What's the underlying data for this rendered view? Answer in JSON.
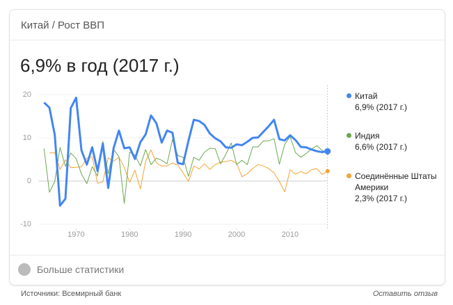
{
  "header": {
    "title": "Китай / Рост ВВП",
    "headline": "6,9% в год (2017 г.)"
  },
  "chart_data": {
    "type": "line",
    "x": [
      1964,
      1965,
      1966,
      1967,
      1968,
      1969,
      1970,
      1971,
      1972,
      1973,
      1974,
      1975,
      1976,
      1977,
      1978,
      1979,
      1980,
      1981,
      1982,
      1983,
      1984,
      1985,
      1986,
      1987,
      1988,
      1989,
      1990,
      1991,
      1992,
      1993,
      1994,
      1995,
      1996,
      1997,
      1998,
      1999,
      2000,
      2001,
      2002,
      2003,
      2004,
      2005,
      2006,
      2007,
      2008,
      2009,
      2010,
      2011,
      2012,
      2013,
      2014,
      2015,
      2016,
      2017
    ],
    "series": [
      {
        "name": "Китай",
        "note": "6,9% (2017 г.)",
        "color": "#4285f4",
        "values": [
          18.2,
          17.0,
          10.7,
          -5.7,
          -4.1,
          16.9,
          19.3,
          7.1,
          3.8,
          7.8,
          2.3,
          8.7,
          -1.6,
          7.6,
          11.7,
          7.6,
          7.8,
          5.1,
          9.0,
          10.8,
          15.2,
          13.4,
          8.9,
          11.7,
          11.2,
          4.2,
          3.9,
          9.3,
          14.2,
          13.9,
          13.0,
          11.0,
          9.9,
          9.2,
          7.8,
          7.7,
          8.5,
          8.3,
          9.1,
          10.0,
          10.1,
          11.4,
          12.7,
          14.2,
          9.7,
          9.4,
          10.6,
          9.5,
          7.9,
          7.8,
          7.3,
          6.9,
          6.7,
          6.9
        ]
      },
      {
        "name": "Индия",
        "note": "6,6% (2017 г.)",
        "color": "#6aa84f",
        "values": [
          7.5,
          -2.6,
          -0.1,
          7.8,
          3.4,
          6.5,
          5.2,
          1.6,
          -0.6,
          3.3,
          1.2,
          9.2,
          1.7,
          7.3,
          5.7,
          -5.2,
          6.7,
          6.0,
          3.5,
          7.3,
          3.8,
          5.3,
          4.8,
          4.0,
          9.6,
          5.9,
          5.5,
          1.1,
          5.5,
          4.8,
          6.7,
          7.6,
          7.5,
          4.0,
          6.2,
          8.8,
          3.8,
          4.8,
          3.8,
          7.9,
          7.9,
          9.3,
          9.3,
          9.8,
          3.9,
          8.5,
          10.3,
          6.6,
          5.5,
          6.4,
          7.4,
          8.2,
          7.1,
          6.6
        ]
      },
      {
        "name": "Соединённые Штаты Америки",
        "note": "2,3% (2017 г.)",
        "color": "#f4a432",
        "values": [
          null,
          6.5,
          6.6,
          2.7,
          4.9,
          3.1,
          3.2,
          3.3,
          5.3,
          5.6,
          -0.5,
          -0.2,
          5.4,
          4.6,
          5.5,
          3.2,
          -0.3,
          2.5,
          -1.8,
          4.6,
          7.2,
          4.2,
          3.5,
          3.5,
          4.2,
          3.7,
          1.9,
          -0.1,
          3.5,
          2.8,
          4.0,
          2.7,
          3.8,
          4.4,
          4.5,
          4.8,
          4.1,
          1.0,
          1.7,
          2.9,
          3.8,
          3.5,
          2.9,
          1.9,
          -0.1,
          -2.5,
          2.6,
          1.6,
          2.2,
          1.7,
          2.6,
          2.9,
          1.5,
          2.3
        ]
      }
    ],
    "xlim": [
      1963,
      2017
    ],
    "xticks": [
      1970,
      1980,
      1990,
      2000,
      2010
    ],
    "ylim": [
      -11,
      22
    ],
    "yticks": [
      20,
      10,
      0,
      -10
    ]
  },
  "footer": {
    "more": "Больше статистики",
    "source": "Источники: Всемирный банк",
    "feedback": "Оставить отзыв"
  }
}
